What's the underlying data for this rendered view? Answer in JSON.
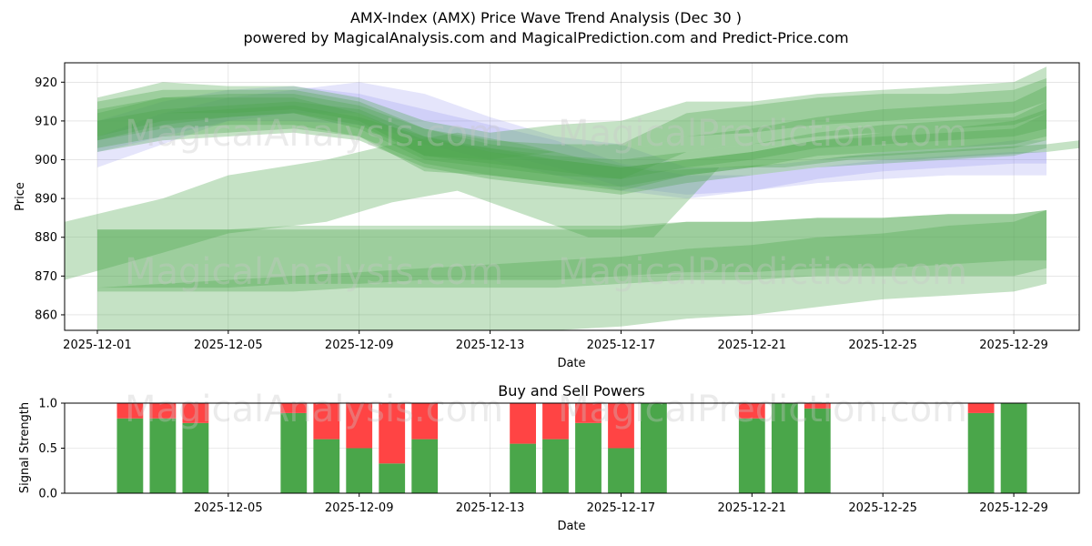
{
  "figure": {
    "title_line1": "AMX-Index (AMX) Price Wave Trend Analysis (Dec 30 )",
    "title_line2": "powered by MagicalAnalysis.com and MagicalPrediction.com and Predict-Price.com",
    "watermarks": [
      "MagicalAnalysis.com",
      "MagicalPrediction.com"
    ]
  },
  "chart_data": [
    {
      "type": "area",
      "title": "",
      "xlabel": "Date",
      "ylabel": "Price",
      "xlim": [
        "2025-11-30",
        "2025-12-31"
      ],
      "ylim": [
        856,
        925
      ],
      "xticks": [
        "2025-12-01",
        "2025-12-05",
        "2025-12-09",
        "2025-12-13",
        "2025-12-17",
        "2025-12-21",
        "2025-12-25",
        "2025-12-29"
      ],
      "yticks": [
        860,
        870,
        880,
        890,
        900,
        910,
        920
      ],
      "grid": true,
      "colors": {
        "green": "#4aa64a",
        "blue": "#8888ee"
      },
      "bands": [
        {
          "color": "blue",
          "x": [
            "2025-12-01",
            "2025-12-03",
            "2025-12-05",
            "2025-12-07",
            "2025-12-09",
            "2025-12-11",
            "2025-12-13",
            "2025-12-15",
            "2025-12-17",
            "2025-12-19",
            "2025-12-21",
            "2025-12-23",
            "2025-12-25",
            "2025-12-27",
            "2025-12-29",
            "2025-12-30"
          ],
          "upper": [
            906,
            912,
            916,
            918,
            920,
            917,
            911,
            906,
            904,
            898,
            898,
            900,
            902,
            903,
            905,
            905
          ],
          "lower": [
            898,
            904,
            910,
            912,
            912,
            904,
            900,
            896,
            892,
            890,
            892,
            895,
            897,
            898,
            899,
            899
          ]
        },
        {
          "color": "blue",
          "x": [
            "2025-12-01",
            "2025-12-03",
            "2025-12-05",
            "2025-12-07",
            "2025-12-09",
            "2025-12-11",
            "2025-12-13",
            "2025-12-15",
            "2025-12-17",
            "2025-12-19",
            "2025-12-21",
            "2025-12-23",
            "2025-12-25",
            "2025-12-27",
            "2025-12-29",
            "2025-12-30"
          ],
          "upper": [
            910,
            915,
            918,
            919,
            917,
            913,
            909,
            905,
            899,
            896,
            896,
            898,
            900,
            901,
            902,
            902
          ],
          "lower": [
            902,
            906,
            910,
            910,
            909,
            905,
            902,
            898,
            893,
            891,
            892,
            894,
            895,
            896,
            896,
            896
          ]
        },
        {
          "color": "green",
          "x": [
            "2025-12-01",
            "2025-12-03",
            "2025-12-05",
            "2025-12-07",
            "2025-12-09",
            "2025-12-11",
            "2025-12-13",
            "2025-12-15",
            "2025-12-17",
            "2025-12-19",
            "2025-12-21",
            "2025-12-23",
            "2025-12-25",
            "2025-12-27",
            "2025-12-29",
            "2025-12-30"
          ],
          "upper": [
            916,
            920,
            919,
            919,
            916,
            910,
            907,
            909,
            910,
            915,
            915,
            917,
            918,
            919,
            920,
            924
          ],
          "lower": [
            908,
            912,
            912,
            913,
            910,
            901,
            900,
            902,
            902,
            906,
            907,
            909,
            910,
            911,
            912,
            915
          ]
        },
        {
          "color": "green",
          "x": [
            "2025-12-01",
            "2025-12-03",
            "2025-12-05",
            "2025-12-07",
            "2025-12-09",
            "2025-12-11",
            "2025-12-13",
            "2025-12-15",
            "2025-12-17",
            "2025-12-19",
            "2025-12-21",
            "2025-12-23",
            "2025-12-25",
            "2025-12-27",
            "2025-12-29",
            "2025-12-30"
          ],
          "upper": [
            912,
            916,
            917,
            917,
            914,
            908,
            905,
            904,
            904,
            912,
            914,
            916,
            917,
            917,
            918,
            921
          ],
          "lower": [
            905,
            909,
            911,
            912,
            909,
            901,
            899,
            897,
            895,
            902,
            904,
            906,
            907,
            908,
            909,
            912
          ]
        },
        {
          "color": "green",
          "x": [
            "2025-12-01",
            "2025-12-03",
            "2025-12-05",
            "2025-12-07",
            "2025-12-09",
            "2025-12-11",
            "2025-12-13",
            "2025-12-15",
            "2025-12-17",
            "2025-12-19",
            "2025-12-21",
            "2025-12-23",
            "2025-12-25",
            "2025-12-27",
            "2025-12-29",
            "2025-12-30"
          ],
          "upper": [
            915,
            918,
            918,
            918,
            915,
            908,
            904,
            902,
            902,
            906,
            908,
            911,
            913,
            914,
            915,
            919
          ],
          "lower": [
            906,
            910,
            911,
            912,
            908,
            900,
            898,
            896,
            895,
            898,
            900,
            903,
            904,
            905,
            906,
            908
          ]
        },
        {
          "color": "green",
          "x": [
            "2025-12-01",
            "2025-12-03",
            "2025-12-05",
            "2025-12-07",
            "2025-12-09",
            "2025-12-11",
            "2025-12-13",
            "2025-12-15",
            "2025-12-17",
            "2025-12-19",
            "2025-12-21",
            "2025-12-23",
            "2025-12-25",
            "2025-12-27",
            "2025-12-29",
            "2025-12-30"
          ],
          "upper": [
            910,
            913,
            914,
            915,
            913,
            906,
            903,
            901,
            900,
            902,
            904,
            907,
            909,
            910,
            911,
            915
          ],
          "lower": [
            903,
            906,
            907,
            908,
            906,
            899,
            896,
            894,
            893,
            896,
            898,
            901,
            902,
            903,
            904,
            906
          ]
        },
        {
          "color": "green",
          "x": [
            "2025-12-01",
            "2025-12-03",
            "2025-12-05",
            "2025-12-07",
            "2025-12-09",
            "2025-12-11",
            "2025-12-13",
            "2025-12-15",
            "2025-12-17",
            "2025-12-19",
            "2025-12-21",
            "2025-12-23",
            "2025-12-25",
            "2025-12-27",
            "2025-12-29",
            "2025-12-30"
          ],
          "upper": [
            913,
            916,
            916,
            916,
            912,
            905,
            903,
            900,
            898,
            900,
            902,
            905,
            906,
            907,
            908,
            912
          ],
          "lower": [
            905,
            908,
            909,
            909,
            906,
            897,
            896,
            894,
            892,
            896,
            898,
            900,
            901,
            902,
            903,
            905
          ]
        },
        {
          "color": "green",
          "x": [
            "2025-12-01",
            "2025-12-03",
            "2025-12-05",
            "2025-12-07",
            "2025-12-09",
            "2025-12-11",
            "2025-12-13",
            "2025-12-15",
            "2025-12-17",
            "2025-12-19",
            "2025-12-21",
            "2025-12-23",
            "2025-12-25",
            "2025-12-27",
            "2025-12-29",
            "2025-12-30"
          ],
          "upper": [
            908,
            912,
            913,
            914,
            911,
            906,
            902,
            900,
            898,
            900,
            902,
            905,
            907,
            908,
            910,
            913
          ],
          "lower": [
            902,
            905,
            906,
            907,
            905,
            898,
            895,
            893,
            891,
            894,
            896,
            898,
            899,
            900,
            901,
            903
          ]
        },
        {
          "color": "green",
          "x": [
            "2025-11-30",
            "2025-12-03",
            "2025-12-05",
            "2025-12-08",
            "2025-12-10",
            "2025-12-12",
            "2025-12-14",
            "2025-12-16",
            "2025-12-18",
            "2025-12-20",
            "2025-12-22",
            "2025-12-24",
            "2025-12-26",
            "2025-12-28",
            "2025-12-30",
            "2025-12-31"
          ],
          "upper": [
            884,
            890,
            896,
            900,
            904,
            907,
            904,
            900,
            897,
            898,
            899,
            901,
            902,
            903,
            904,
            905
          ],
          "lower": [
            869,
            876,
            881,
            884,
            889,
            892,
            886,
            880,
            880,
            898,
            898,
            900,
            900,
            901,
            902,
            903
          ]
        },
        {
          "color": "green",
          "x": [
            "2025-12-01",
            "2025-12-03",
            "2025-12-05",
            "2025-12-07",
            "2025-12-09",
            "2025-12-11",
            "2025-12-13",
            "2025-12-15",
            "2025-12-17",
            "2025-12-19",
            "2025-12-21",
            "2025-12-23",
            "2025-12-25",
            "2025-12-27",
            "2025-12-29",
            "2025-12-30"
          ],
          "upper": [
            882,
            882,
            882,
            883,
            883,
            883,
            883,
            883,
            883,
            884,
            884,
            885,
            885,
            886,
            886,
            887
          ],
          "lower": [
            867,
            867,
            867,
            868,
            868,
            869,
            869,
            869,
            870,
            871,
            871,
            872,
            872,
            873,
            874,
            874
          ]
        },
        {
          "color": "green",
          "x": [
            "2025-12-01",
            "2025-12-03",
            "2025-12-05",
            "2025-12-07",
            "2025-12-09",
            "2025-12-11",
            "2025-12-13",
            "2025-12-15",
            "2025-12-17",
            "2025-12-19",
            "2025-12-21",
            "2025-12-23",
            "2025-12-25",
            "2025-12-27",
            "2025-12-29",
            "2025-12-30"
          ],
          "upper": [
            882,
            882,
            882,
            882,
            882,
            882,
            882,
            882,
            882,
            884,
            884,
            885,
            885,
            886,
            886,
            887
          ],
          "lower": [
            866,
            866,
            866,
            866,
            867,
            867,
            867,
            867,
            868,
            869,
            869,
            870,
            870,
            870,
            870,
            872
          ]
        },
        {
          "color": "green",
          "x": [
            "2025-12-01",
            "2025-12-03",
            "2025-12-05",
            "2025-12-07",
            "2025-12-09",
            "2025-12-11",
            "2025-12-13",
            "2025-12-15",
            "2025-12-17",
            "2025-12-19",
            "2025-12-21",
            "2025-12-23",
            "2025-12-25",
            "2025-12-27",
            "2025-12-29",
            "2025-12-30"
          ],
          "upper": [
            867,
            868,
            869,
            870,
            871,
            872,
            873,
            874,
            875,
            877,
            878,
            880,
            881,
            883,
            884,
            887
          ],
          "lower": [
            856,
            856,
            856,
            856,
            856,
            856,
            856,
            856,
            857,
            859,
            860,
            862,
            864,
            865,
            866,
            868
          ]
        }
      ]
    },
    {
      "type": "bar",
      "title": "Buy and Sell Powers",
      "xlabel": "Date",
      "ylabel": "Signal Strength",
      "xlim": [
        "2025-11-30",
        "2025-12-31"
      ],
      "ylim": [
        0,
        1.0
      ],
      "xticks": [
        "2025-12-05",
        "2025-12-09",
        "2025-12-13",
        "2025-12-17",
        "2025-12-21",
        "2025-12-25",
        "2025-12-29"
      ],
      "yticks": [
        0.0,
        0.5,
        1.0
      ],
      "grid": true,
      "colors": {
        "buy": "#4aa64a",
        "sell": "#ff4444"
      },
      "categories": [
        "2025-12-02",
        "2025-12-03",
        "2025-12-04",
        "2025-12-07",
        "2025-12-08",
        "2025-12-09",
        "2025-12-10",
        "2025-12-11",
        "2025-12-14",
        "2025-12-15",
        "2025-12-16",
        "2025-12-17",
        "2025-12-18",
        "2025-12-21",
        "2025-12-22",
        "2025-12-23",
        "2025-12-28",
        "2025-12-29"
      ],
      "series": [
        {
          "name": "Buy",
          "values": [
            0.83,
            0.83,
            0.78,
            0.89,
            0.6,
            0.5,
            0.33,
            0.6,
            0.55,
            0.6,
            0.78,
            0.5,
            1.0,
            0.83,
            1.0,
            0.94,
            0.89,
            1.0
          ]
        },
        {
          "name": "Sell",
          "values": [
            0.17,
            0.17,
            0.22,
            0.11,
            0.4,
            0.5,
            0.67,
            0.4,
            0.45,
            0.4,
            0.22,
            0.5,
            0.0,
            0.17,
            0.0,
            0.06,
            0.11,
            0.0
          ]
        }
      ]
    }
  ]
}
